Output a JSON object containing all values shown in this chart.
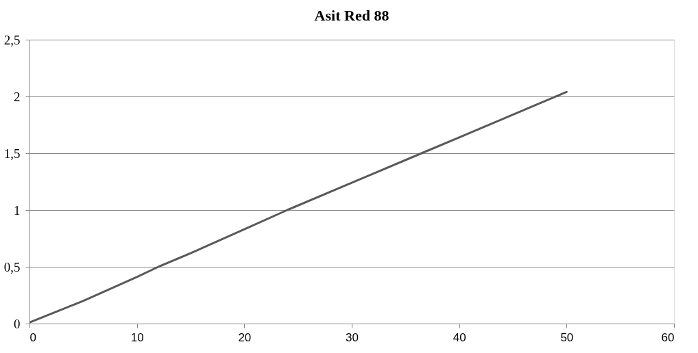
{
  "chart_data": {
    "type": "line",
    "title": "Asit Red 88",
    "x": [
      0,
      5,
      10,
      12,
      15,
      20,
      24,
      30,
      36.5,
      40,
      45,
      50
    ],
    "series": [
      {
        "color": "#595959",
        "values": [
          0.01,
          0.2,
          0.41,
          0.5,
          0.62,
          0.83,
          1.0,
          1.24,
          1.5,
          1.64,
          1.84,
          2.04
        ]
      }
    ],
    "xlim": [
      0,
      60
    ],
    "xticks": [
      0,
      10,
      20,
      30,
      40,
      50,
      60
    ],
    "ylim": [
      0,
      2.5
    ],
    "yticks": [
      0,
      {
        "value": 0.5,
        "label": "0,5"
      },
      1,
      {
        "value": 1.5,
        "label": "1,5"
      },
      2,
      {
        "value": 2.5,
        "label": "2,5"
      }
    ],
    "grid": "y",
    "marker": "none",
    "line_style": "solid"
  }
}
